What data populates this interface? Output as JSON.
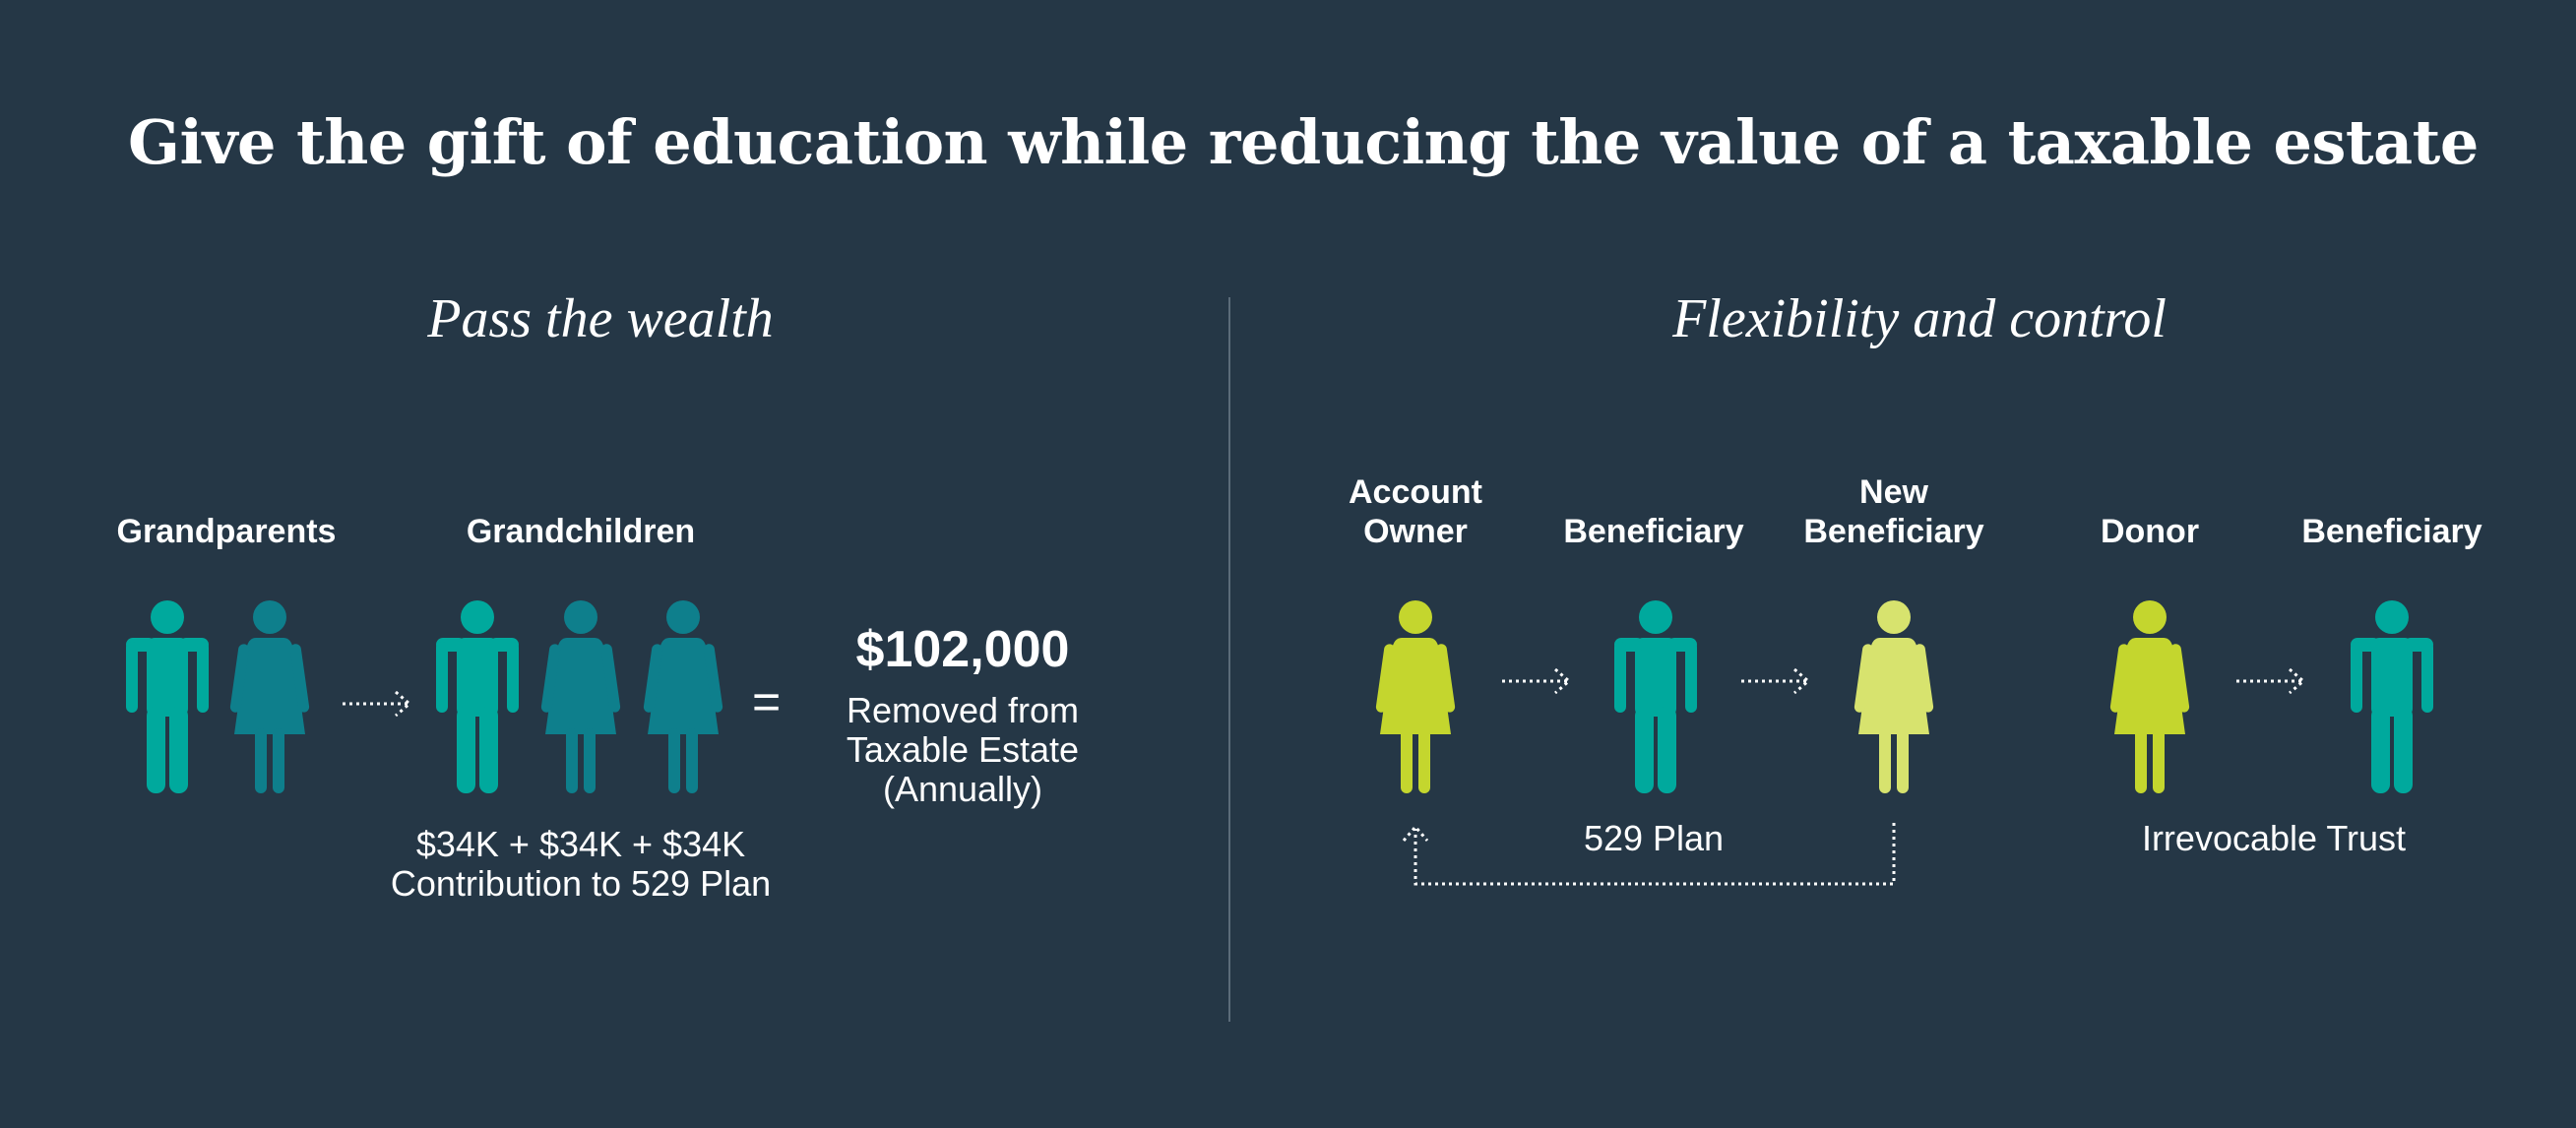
{
  "title": "Give the gift of education while reducing the value of a taxable estate",
  "left_section": {
    "heading": "Pass the wealth",
    "grandparents_label": "Grandparents",
    "grandchildren_label": "Grandchildren",
    "equals_sign": "=",
    "amount": "$102,000",
    "amount_desc": [
      "Removed from",
      "Taxable Estate",
      "(Annually)"
    ],
    "contribution_lines": [
      "$34K + $34K + $34K",
      "Contribution to 529 Plan"
    ]
  },
  "right_section": {
    "heading": "Flexibility and control",
    "plan_529": {
      "account_owner_label": [
        "Account",
        "Owner"
      ],
      "beneficiary_label": "Beneficiary",
      "new_beneficiary_label": [
        "New",
        "Beneficiary"
      ],
      "caption": "529 Plan"
    },
    "trust": {
      "donor_label": "Donor",
      "beneficiary_label": "Beneficiary",
      "caption": "Irrevocable Trust"
    }
  },
  "colors": {
    "background": "#253746",
    "teal": "#00A99D",
    "dark_teal": "#0E7F8C",
    "lime": "#C4D62E",
    "light_lime": "#D7E36E",
    "divider": "#5b6b79"
  },
  "icons": [
    "male-figure-icon",
    "female-figure-icon",
    "dotted-arrow-right-icon",
    "dotted-return-arrow-icon"
  ]
}
